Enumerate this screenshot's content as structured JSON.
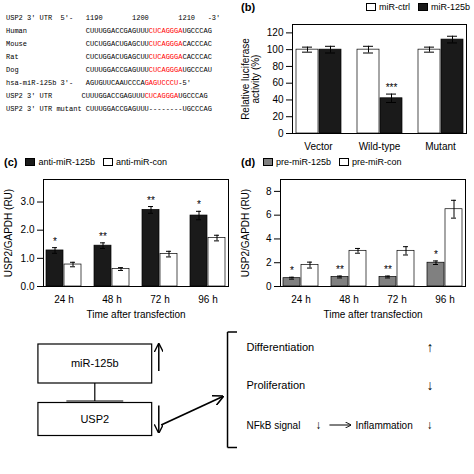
{
  "chart_data": [
    {
      "type": "text",
      "annotations": [
        [
          {
            "text": "USP2 3' UTR  5'-   1190       1200       1210   -3'"
          }
        ],
        [
          {
            "text": "Human"
          },
          {
            "text": "CUUUGGACCGAGUUU"
          },
          {
            "text": "CUCAGGGA",
            "color": "red"
          },
          {
            "text": "UGCCCAG"
          }
        ],
        [
          {
            "text": "Mouse"
          },
          {
            "text": "CUCUGGACUGAGCUU"
          },
          {
            "text": "CUCAGGGA",
            "color": "red"
          },
          {
            "text": "CACCCAC"
          }
        ],
        [
          {
            "text": "Rat"
          },
          {
            "text": "CUCUGGACUGAGCUU"
          },
          {
            "text": "CUCAGGGA",
            "color": "red"
          },
          {
            "text": "CACCCAC"
          }
        ],
        [
          {
            "text": "Dog"
          },
          {
            "text": "CUUUGGACCGAGUUU"
          },
          {
            "text": "CUCAGGGA",
            "color": "red"
          },
          {
            "text": "UGCCCAU"
          }
        ],
        [
          {
            "text": "hsa-miR-125b 3'-"
          },
          {
            "text": "AGUGUUCAAUCCCA"
          },
          {
            "text": "GAGUCCCU",
            "color": "red"
          },
          {
            "text": "-5'"
          }
        ],
        [
          {
            "text": "USP2 3' UTR       CUUUGGACCGAGUUU"
          },
          {
            "text": "CUCAGGGA",
            "color": "red"
          },
          {
            "text": "UGCCCAG"
          }
        ],
        [
          {
            "text": "USP2 3' UTR mutant CUUUGGACCGAGUUU--------UGCCCAG"
          }
        ]
      ]
    },
    {
      "type": "bar",
      "title": "(b)",
      "categories": [
        "Vector",
        "Wild-type",
        "Mutant"
      ],
      "series": [
        {
          "name": "miR-ctrl",
          "color": "#ffffff",
          "values": [
            100,
            100,
            100
          ],
          "errors": [
            3,
            4,
            3
          ]
        },
        {
          "name": "miR-125b",
          "color": "#1a1a1a",
          "values": [
            100,
            42,
            112
          ],
          "errors": [
            4,
            5,
            4
          ],
          "significance": [
            null,
            "***",
            null
          ]
        }
      ],
      "ylabel": "Relative luciferase\nactivity (%)",
      "ylim": [
        0,
        130
      ],
      "yticks": [
        0,
        20,
        40,
        60,
        80,
        100,
        120
      ],
      "legend": "upper right",
      "grid": false
    },
    {
      "type": "bar",
      "title": "(c)",
      "categories": [
        "24 h",
        "48 h",
        "72 h",
        "96 h"
      ],
      "series": [
        {
          "name": "anti-miR-125b",
          "color": "#1a1a1a",
          "values": [
            1.28,
            1.45,
            2.72,
            2.52
          ],
          "errors": [
            0.1,
            0.1,
            0.12,
            0.15
          ],
          "significance": [
            "*",
            "**",
            "**",
            "*"
          ]
        },
        {
          "name": "anti-miR-con",
          "color": "#ffffff",
          "values": [
            0.78,
            0.62,
            1.15,
            1.72
          ],
          "errors": [
            0.08,
            0.05,
            0.1,
            0.1
          ]
        }
      ],
      "ylabel": "USP2/GAPDH (RU)",
      "xlabel": "Time after transfection",
      "ylim": [
        0,
        3.8
      ],
      "yticks": [
        0,
        1,
        2,
        3
      ],
      "legend": "upper left",
      "grid": false
    },
    {
      "type": "bar",
      "title": "(d)",
      "categories": [
        "24 h",
        "48 h",
        "72 h",
        "96 h"
      ],
      "series": [
        {
          "name": "pre-miR-125b",
          "color": "#808080",
          "values": [
            0.7,
            0.8,
            0.8,
            2.0
          ],
          "errors": [
            0.08,
            0.08,
            0.08,
            0.15
          ],
          "significance": [
            "*",
            "**",
            "**",
            "*"
          ]
        },
        {
          "name": "pre-miR-con",
          "color": "#ffffff",
          "values": [
            1.8,
            3.0,
            3.0,
            6.5
          ],
          "errors": [
            0.25,
            0.2,
            0.35,
            0.75
          ]
        }
      ],
      "ylabel": "USP2/GAPDH (RU)",
      "xlabel": "Time after transfection",
      "ylim": [
        0,
        9
      ],
      "yticks": [
        0,
        2,
        4,
        6,
        8
      ],
      "legend": "upper left",
      "grid": false
    },
    {
      "type": "diagram",
      "annotations": [
        "miR-125b",
        "USP2",
        "Differentiation",
        "↑",
        "Proliferation",
        "↓",
        "NFkB signal",
        "↓",
        "Inflammation",
        "↓"
      ]
    }
  ]
}
